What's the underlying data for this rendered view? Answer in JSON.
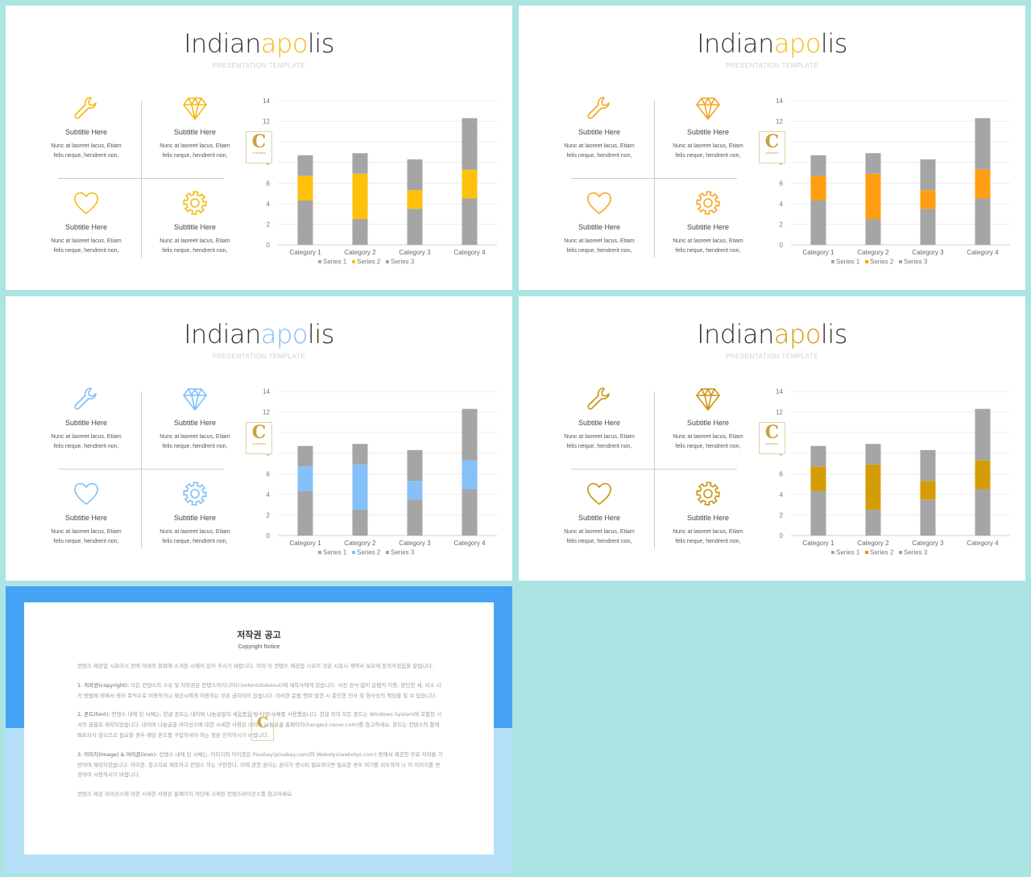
{
  "slides": [
    {
      "title_a": "Indian",
      "title_b": "apo",
      "title_c": "lis",
      "subtitle": "PRESENTATION  TEMPLATE",
      "accent": "#f5b915",
      "icon_color": "#f5b915",
      "series2_color": "#fec10c",
      "logo_text": "C",
      "logo_sub": "CONTENTS",
      "cells": [
        {
          "icon": "wrench-icon",
          "heading": "Subtitle  Here",
          "text1": "Nunc  at laoreet  lacus,  Etiam",
          "text2": "felis  neque,  hendrerit  non,"
        },
        {
          "icon": "diamond-icon",
          "heading": "Subtitle  Here",
          "text1": "Nunc  at laoreet  lacus,  Etiam",
          "text2": "felis  neque,  hendrerit  non,"
        },
        {
          "icon": "heart-icon",
          "heading": "Subtitle  Here",
          "text1": "Nunc  at laoreet  lacus,  Etiam",
          "text2": "felis  neque,  hendrerit  non,"
        },
        {
          "icon": "gear-icon",
          "heading": "Subtitle  Here",
          "text1": "Nunc  at laoreet  lacus,  Etiam",
          "text2": "felis  neque,  hendrerit  non,"
        }
      ]
    },
    {
      "title_a": "Indian",
      "title_b": "apo",
      "title_c": "lis",
      "subtitle": "PRESENTATION  TEMPLATE",
      "accent": "#f5b915",
      "icon_color": "#f5a623",
      "series2_color": "#ff9e12",
      "logo_text": "C",
      "logo_sub": "CONTENTS",
      "cells": [
        {
          "icon": "wrench-icon",
          "heading": "Subtitle  Here",
          "text1": "Nunc  at laoreet  lacus,  Etiam",
          "text2": "felis  neque,  hendrerit  non,"
        },
        {
          "icon": "diamond-icon",
          "heading": "Subtitle  Here",
          "text1": "Nunc  at laoreet  lacus,  Etiam",
          "text2": "felis  neque,  hendrerit  non,"
        },
        {
          "icon": "heart-icon",
          "heading": "Subtitle  Here",
          "text1": "Nunc  at laoreet  lacus,  Etiam",
          "text2": "felis  neque,  hendrerit  non,"
        },
        {
          "icon": "gear-icon",
          "heading": "Subtitle  Here",
          "text1": "Nunc  at laoreet  lacus,  Etiam",
          "text2": "felis  neque,  hendrerit  non,"
        }
      ]
    },
    {
      "title_a": "Indian",
      "title_b": "apo",
      "title_c": "lis",
      "subtitle": "PRESENTATION  TEMPLATE",
      "accent": "#7fbff7",
      "icon_color": "#7fbff7",
      "series2_color": "#85c0f9",
      "logo_text": "C",
      "logo_sub": "CONTENTS",
      "cells": [
        {
          "icon": "wrench-icon",
          "heading": "Subtitle  Here",
          "text1": "Nunc  at laoreet  lacus,  Etiam",
          "text2": "felis  neque,  hendrerit  non,"
        },
        {
          "icon": "diamond-icon",
          "heading": "Subtitle  Here",
          "text1": "Nunc  at laoreet  lacus,  Etiam",
          "text2": "felis  neque,  hendrerit  non,"
        },
        {
          "icon": "heart-icon",
          "heading": "Subtitle  Here",
          "text1": "Nunc  at laoreet  lacus,  Etiam",
          "text2": "felis  neque,  hendrerit  non,"
        },
        {
          "icon": "gear-icon",
          "heading": "Subtitle  Here",
          "text1": "Nunc  at laoreet  lacus,  Etiam",
          "text2": "felis  neque,  hendrerit  non,"
        }
      ]
    },
    {
      "title_a": "Indian",
      "title_b": "apo",
      "title_c": "lis",
      "subtitle": "PRESENTATION  TEMPLATE",
      "accent": "#d29b0e",
      "icon_color": "#c99410",
      "series2_color": "#d49d08",
      "logo_text": "C",
      "logo_sub": "CONTENTS",
      "cells": [
        {
          "icon": "wrench-icon",
          "heading": "Subtitle  Here",
          "text1": "Nunc  at laoreet  lacus,  Etiam",
          "text2": "felis  neque,  hendrerit  non,"
        },
        {
          "icon": "diamond-icon",
          "heading": "Subtitle  Here",
          "text1": "Nunc  at laoreet  lacus,  Etiam",
          "text2": "felis  neque,  hendrerit  non,"
        },
        {
          "icon": "heart-icon",
          "heading": "Subtitle  Here",
          "text1": "Nunc  at laoreet  lacus,  Etiam",
          "text2": "felis  neque,  hendrerit  non,"
        },
        {
          "icon": "gear-icon",
          "heading": "Subtitle  Here",
          "text1": "Nunc  at laoreet  lacus,  Etiam",
          "text2": "felis  neque,  hendrerit  non,"
        }
      ]
    }
  ],
  "chart_data": {
    "type": "bar",
    "stacked": true,
    "categories": [
      "Category 1",
      "Category 2",
      "Category 3",
      "Category 4"
    ],
    "series": [
      {
        "name": "Series 1",
        "values": [
          4.3,
          2.5,
          3.5,
          4.5
        ]
      },
      {
        "name": "Series 2",
        "values": [
          2.4,
          4.4,
          1.8,
          2.8
        ]
      },
      {
        "name": "Series 3",
        "values": [
          2,
          2,
          3,
          5
        ]
      }
    ],
    "series_colors": [
      "#a5a5a5",
      "series2_color",
      "#a5a5a5"
    ],
    "yticks": [
      "0",
      "2",
      "4",
      "6",
      "8",
      "10",
      "12",
      "14"
    ],
    "ylim": [
      0,
      14
    ],
    "grid": true,
    "legend": "bottom"
  },
  "notice": {
    "band_color": "#46a2f2",
    "title": "저작권 공고",
    "subtitle": "Copyright Notice",
    "p0": "컨텐스 제공업 시효이시 전에 아래의 항목에 소개된 시에이 있어 주시기 바랍니다. 이미 이 컨텐스 제공업 시효이 것은 시봇시 계약서 보호에 동의하셨음을 알립니다.",
    "p1_label": "1. 저작권(copyright):",
    "p1": "모든 컨텐스의 소유 및 저작권은 컨텐스아이니어(Contentstokeout)에 제작사에게 있습니다. 사전 승낙 없이 문법적 이용, 판단한 세, 비소 시키 방법에 외에서 영리 목적으로 이용하거나 재산시에게 이용하는 것은 금지되어 있습니다. 이러한 문법 행위 발현 시 준민한 민사 및 형사상의 책임을 질 수 있습니다.",
    "p2_label": "2. 폰트(font):",
    "p2": "컨텐스 내에 된 서체는, 한글 폰트는 네이버 나눔글꼴의 세움돋움 및 다양 서체를 사용했습니다. 한글 외의 모든 폰트는 Windows System에 포함된 시서의 글꼴로 제작되었습니다. 네이버 나눔글꼴 라이선스에 대한 시세한 사항은 네이버 나눔글꼴 홈페이지(hangeul.naver.com)를 참고하세요. 폰트는 컨텐스의 함께 배포되지 않으므로 필요할 경우 해당 폰트를 구입하셔야 하는 점은 인지하시기 바랍니다.",
    "p3_label": "3. 이미지(image) & 아이콘(icon):",
    "p3": "컨텐스 내에 된 서체는, 이미지와 아이콘은 Pixabay(pixabay.com)와 Webolys(webolys.com) 등에서 제공한 무료 저작물 기반이며 제작되었습니다. 아이콘, 참고자료 제조하고 컨텐스 하는 구현한다. 이에 관한 권리는 권리가 명시되 필요하다면 필요한 경우 여기를 쉬우하여 나 이 이미지를 변경하여 사용하시기 바랍니다.",
    "p4": "컨텐스 제공 라이선스에 대한 시세한 사항은 홈페이지 하단에 시재된 컨텐스라이선스를 참고하세요."
  }
}
